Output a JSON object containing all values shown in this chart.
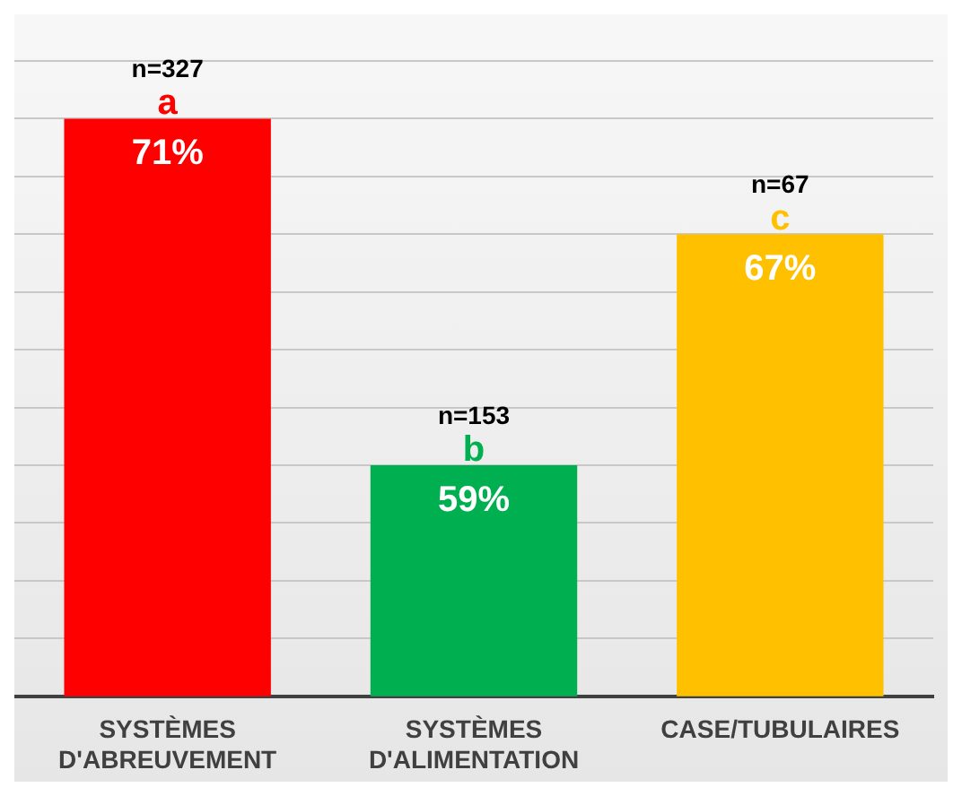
{
  "chart_data": {
    "type": "bar",
    "categories": [
      "SYSTÈMES D'ABREUVEMENT",
      "SYSTÈMES D'ALIMENTATION",
      "CASE/TUBULAIRES"
    ],
    "values": [
      71,
      59,
      67
    ],
    "colors": [
      "#ff0000",
      "#00b050",
      "#ffc000"
    ],
    "value_labels": [
      "71%",
      "59%",
      "67%"
    ],
    "ylim": [
      51,
      73
    ],
    "yticks": [
      {
        "value": 51,
        "label": null
      },
      {
        "value": 53,
        "label": null
      },
      {
        "value": 55,
        "label": null
      },
      {
        "value": 57,
        "label": null
      },
      {
        "value": 59,
        "label": null
      },
      {
        "value": 61,
        "label": null
      },
      {
        "value": 63,
        "label": null
      },
      {
        "value": 65,
        "label": null
      },
      {
        "value": 67,
        "label": null
      },
      {
        "value": 69,
        "label": null
      },
      {
        "value": 71,
        "label": null
      },
      {
        "value": 73,
        "label": null
      }
    ],
    "grid": "y",
    "tick_labels": "x",
    "annotations": [
      {
        "text": "n=327",
        "x": "SYSTÈMES D'ABREUVEMENT",
        "y": 71
      },
      {
        "text": "a",
        "x": "SYSTÈMES D'ABREUVEMENT",
        "y": 71
      },
      {
        "text": "n=153",
        "x": "SYSTÈMES D'ALIMENTATION",
        "y": 59
      },
      {
        "text": "b",
        "x": "SYSTÈMES D'ALIMENTATION",
        "y": 59
      },
      {
        "text": "n=67",
        "x": "CASE/TUBULAIRES",
        "y": 67
      },
      {
        "text": "c",
        "x": "CASE/TUBULAIRES",
        "y": 67
      }
    ]
  }
}
